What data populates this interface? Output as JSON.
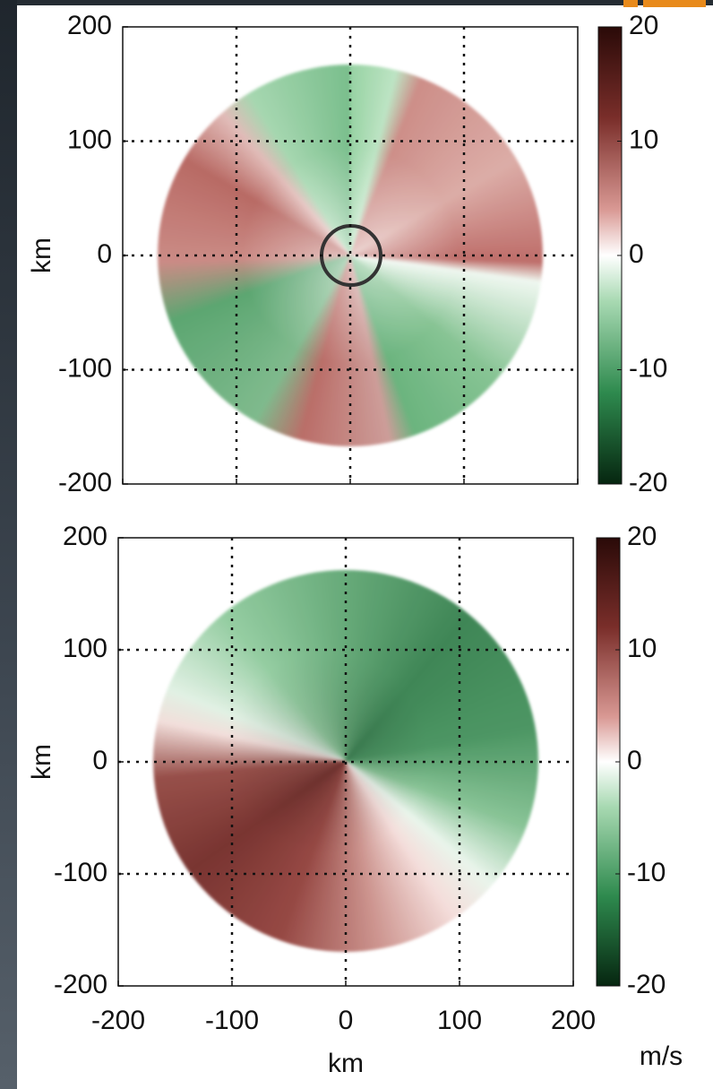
{
  "chart_data": [
    {
      "type": "heatmap",
      "ylabel": "km",
      "xlim": [
        -200,
        200
      ],
      "xticks": [
        -200,
        -100,
        0,
        100,
        200
      ],
      "ylim": [
        -200,
        200
      ],
      "yticks": [
        -200,
        -100,
        0,
        100,
        200
      ],
      "grid": true,
      "colorbar": {
        "lim": [
          -20,
          20
        ],
        "ticks": [
          -20,
          -10,
          0,
          10,
          20
        ]
      }
    },
    {
      "type": "heatmap",
      "xlabel": "km",
      "ylabel": "km",
      "xlim": [
        -200,
        200
      ],
      "xticks": [
        -200,
        -100,
        0,
        100,
        200
      ],
      "ylim": [
        -200,
        200
      ],
      "yticks": [
        -200,
        -100,
        0,
        100,
        200
      ],
      "grid": true,
      "colorbar": {
        "lim": [
          -20,
          20
        ],
        "ticks": [
          -20,
          -10,
          0,
          10,
          20
        ],
        "label": "m/s"
      }
    }
  ]
}
